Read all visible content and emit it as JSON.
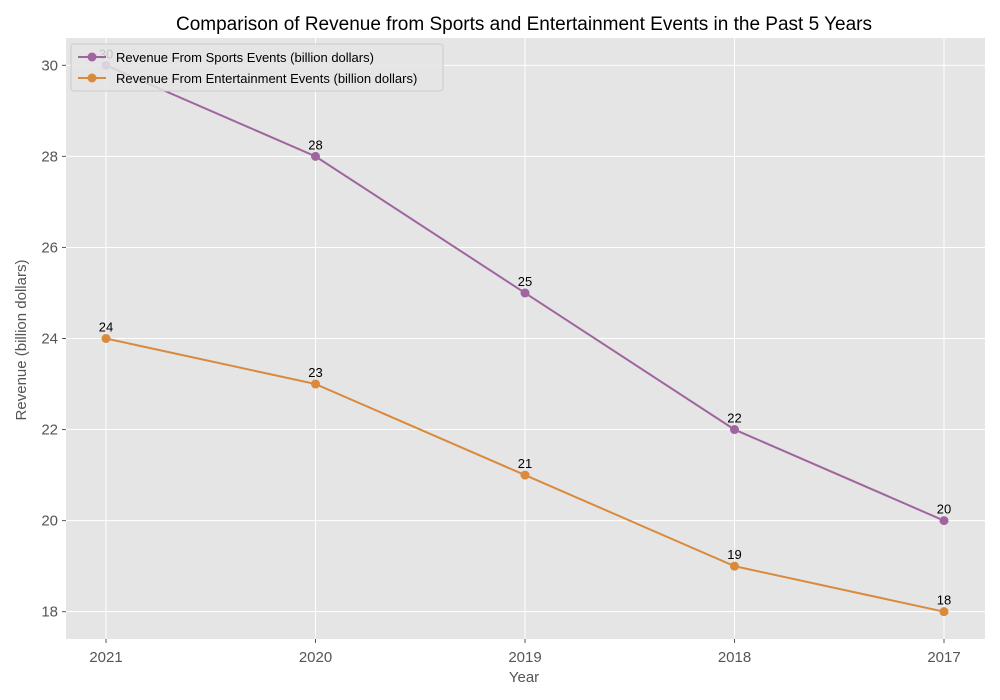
{
  "chart_data": {
    "type": "line",
    "title": "Comparison of Revenue from Sports and Entertainment Events in the Past 5 Years",
    "xlabel": "Year",
    "ylabel": "Revenue (billion dollars)",
    "categories": [
      "2021",
      "2020",
      "2019",
      "2018",
      "2017"
    ],
    "series": [
      {
        "name": "Revenue From Sports Events (billion dollars)",
        "values": [
          30,
          28,
          25,
          22,
          20
        ],
        "color": "#a0649e"
      },
      {
        "name": "Revenue From Entertainment Events (billion dollars)",
        "values": [
          24,
          23,
          21,
          19,
          18
        ],
        "color": "#d98a3c"
      }
    ],
    "ylim": [
      17.4,
      30.6
    ],
    "yticks": [
      "18",
      "20",
      "22",
      "24",
      "26",
      "28",
      "30"
    ],
    "grid": true,
    "legend": "top-left",
    "background": "#e5e5e5"
  }
}
